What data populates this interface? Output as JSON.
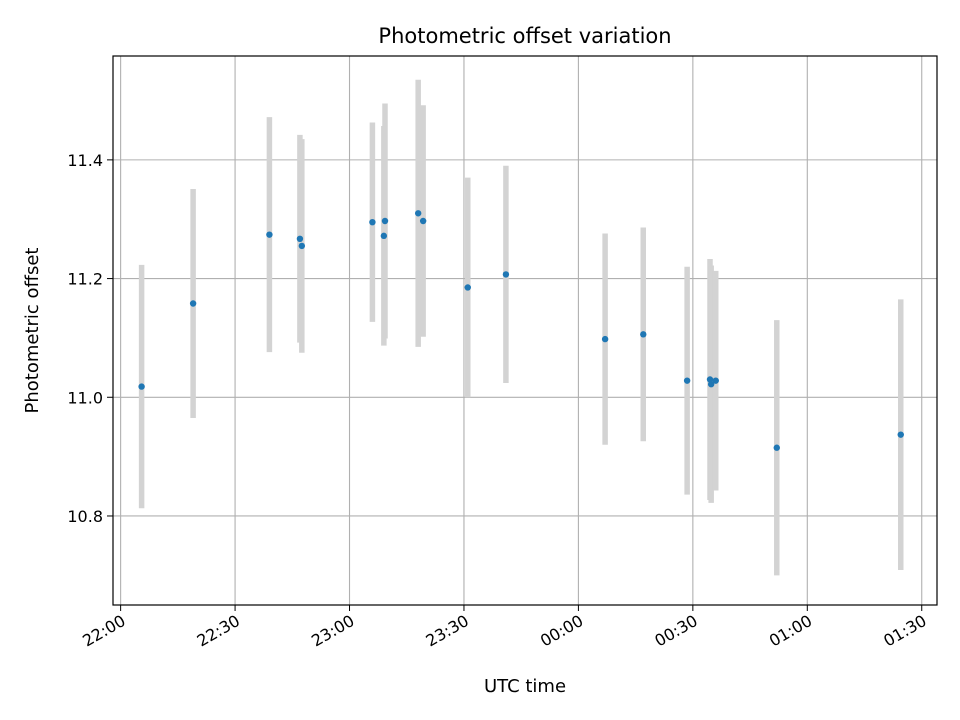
{
  "chart_data": {
    "type": "scatter",
    "title": "Photometric offset variation",
    "xlabel": "UTC time",
    "ylabel": "Photometric offset",
    "x_tick_labels": [
      "22:00",
      "22:30",
      "23:00",
      "23:30",
      "00:00",
      "00:30",
      "01:00",
      "01:30"
    ],
    "x_tick_times": [
      "22:00",
      "22:30",
      "23:00",
      "23:30",
      "24:00",
      "24:30",
      "25:00",
      "25:30"
    ],
    "xlim": [
      "21:58",
      "25:34"
    ],
    "y_tick_labels": [
      "10.8",
      "11.0",
      "11.2",
      "11.4"
    ],
    "y_tick_values": [
      10.8,
      11.0,
      11.2,
      11.4
    ],
    "ylim": [
      10.65,
      11.575
    ],
    "grid": true,
    "point_color": "#1f77b4",
    "errorbar_color": "#d3d3d3",
    "points": [
      {
        "time": "22:05.5",
        "y": 11.018,
        "err": 0.205
      },
      {
        "time": "22:19",
        "y": 11.158,
        "err": 0.193
      },
      {
        "time": "22:39",
        "y": 11.274,
        "err": 0.198
      },
      {
        "time": "22:47",
        "y": 11.267,
        "err": 0.175
      },
      {
        "time": "22:47.5",
        "y": 11.255,
        "err": 0.18
      },
      {
        "time": "23:06",
        "y": 11.295,
        "err": 0.168
      },
      {
        "time": "23:09",
        "y": 11.272,
        "err": 0.185
      },
      {
        "time": "23:09.3",
        "y": 11.297,
        "err": 0.198
      },
      {
        "time": "23:18",
        "y": 11.31,
        "err": 0.225
      },
      {
        "time": "23:19.3",
        "y": 11.297,
        "err": 0.195
      },
      {
        "time": "23:31",
        "y": 11.185,
        "err": 0.185
      },
      {
        "time": "23:41",
        "y": 11.207,
        "err": 0.183
      },
      {
        "time": "24:07",
        "y": 11.098,
        "err": 0.178
      },
      {
        "time": "24:17",
        "y": 11.106,
        "err": 0.18
      },
      {
        "time": "24:28.5",
        "y": 11.028,
        "err": 0.192
      },
      {
        "time": "24:34.5",
        "y": 11.03,
        "err": 0.203
      },
      {
        "time": "24:34.8",
        "y": 11.022,
        "err": 0.2
      },
      {
        "time": "24:36",
        "y": 11.028,
        "err": 0.185
      },
      {
        "time": "24:52",
        "y": 10.915,
        "err": 0.215
      },
      {
        "time": "25:24.5",
        "y": 10.937,
        "err": 0.228
      }
    ]
  }
}
